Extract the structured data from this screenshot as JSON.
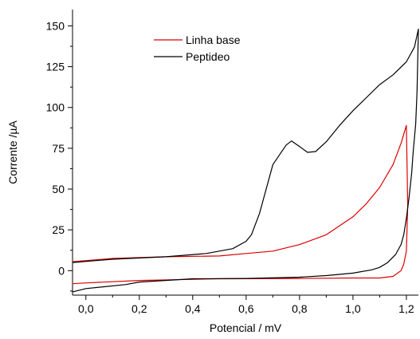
{
  "chart_data": {
    "type": "line",
    "xlabel": "Potencial / mV",
    "ylabel": "Corrente /µA",
    "xlim": [
      -0.05,
      1.245
    ],
    "ylim": [
      -15,
      160
    ],
    "x_ticks": [
      0.0,
      0.2,
      0.4,
      0.6,
      0.8,
      1.0,
      1.2
    ],
    "x_tick_labels": [
      "0,0",
      "0,2",
      "0,4",
      "0,6",
      "0,8",
      "1,0",
      "1,2"
    ],
    "y_ticks": [
      0,
      25,
      50,
      75,
      100,
      125,
      150
    ],
    "y_tick_labels": [
      "0",
      "25",
      "50",
      "75",
      "100",
      "125",
      "150"
    ],
    "grid": false,
    "legend_position": "top-left",
    "series": [
      {
        "name": "Linha base",
        "color": "#dd0000",
        "x": [
          -0.05,
          0.1,
          0.3,
          0.5,
          0.6,
          0.7,
          0.8,
          0.9,
          1.0,
          1.05,
          1.1,
          1.15,
          1.18,
          1.2,
          1.205,
          1.2,
          1.19,
          1.18,
          1.15,
          1.1,
          1.0,
          0.8,
          0.5,
          0.2,
          0.0,
          -0.05
        ],
        "y": [
          5.5,
          7.5,
          8.5,
          9.0,
          10.5,
          12.0,
          16.0,
          22.0,
          33.0,
          41.0,
          51.0,
          65.0,
          78.0,
          89.0,
          40.0,
          12.0,
          4.0,
          0.0,
          -3.5,
          -4.5,
          -4.5,
          -4.8,
          -5.0,
          -6.0,
          -7.5,
          -8.0
        ]
      },
      {
        "name": "Peptideo",
        "color": "#000000",
        "x": [
          -0.05,
          0.1,
          0.3,
          0.45,
          0.5,
          0.55,
          0.6,
          0.62,
          0.65,
          0.7,
          0.75,
          0.77,
          0.8,
          0.83,
          0.86,
          0.9,
          0.95,
          1.0,
          1.05,
          1.1,
          1.15,
          1.2,
          1.23,
          1.245,
          1.24,
          1.235,
          1.225,
          1.22,
          1.21,
          1.2,
          1.19,
          1.18,
          1.16,
          1.13,
          1.1,
          1.07,
          1.0,
          0.9,
          0.8,
          0.6,
          0.4,
          0.2,
          0.15,
          0.0,
          -0.05
        ],
        "y": [
          5.0,
          7.0,
          8.5,
          10.5,
          12.0,
          13.5,
          18.0,
          22.0,
          35.0,
          65.0,
          77.0,
          79.5,
          76.0,
          72.5,
          73.0,
          79.0,
          89.0,
          98.0,
          106.0,
          114.0,
          120.0,
          128.0,
          137.0,
          148.0,
          110.0,
          90.0,
          72.0,
          60.0,
          45.0,
          32.0,
          22.0,
          16.0,
          10.0,
          5.0,
          2.0,
          0.5,
          -1.5,
          -3.0,
          -4.0,
          -4.8,
          -5.0,
          -7.0,
          -8.5,
          -11.0,
          -13.0
        ]
      }
    ]
  }
}
